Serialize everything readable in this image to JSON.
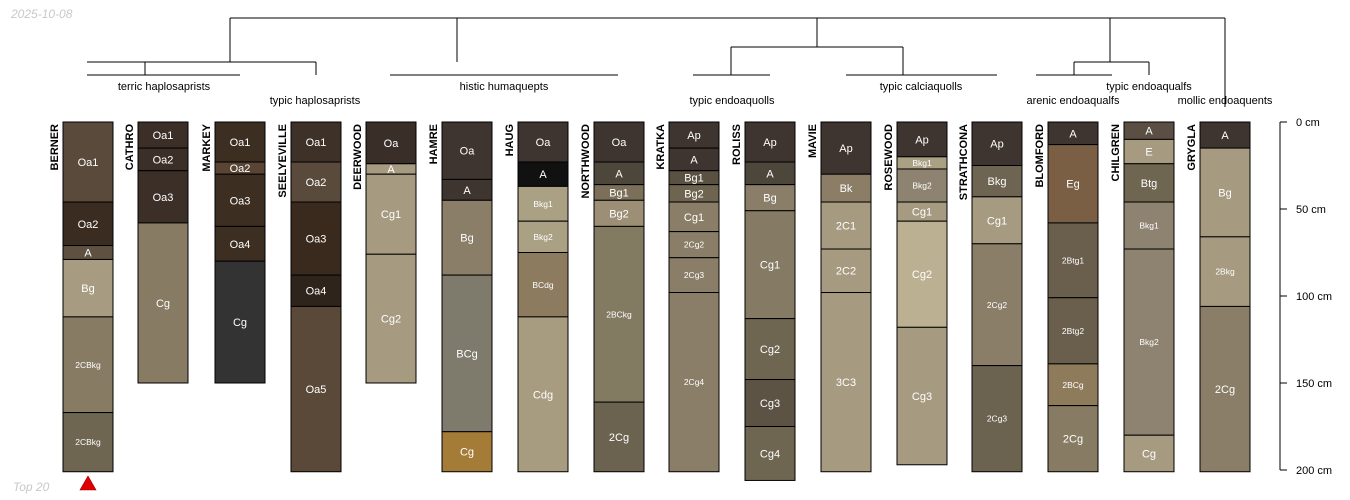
{
  "corner": {
    "top_left": "2025-10-08",
    "bottom_left": "Top 20"
  },
  "depth_axis": {
    "ticks": [
      "0 cm",
      "50 cm",
      "100 cm",
      "150 cm",
      "200 cm"
    ],
    "values": [
      0,
      50,
      100,
      150,
      200
    ],
    "max": 200
  },
  "groups": [
    "terric haplosaprists",
    "typic haplosaprists",
    "histic humaquepts",
    "typic endoaquolls",
    "typic calciaquolls",
    "typic endoaqualfs",
    "arenic endoaqualfs",
    "mollic endoaquents"
  ],
  "profiles": [
    {
      "name": "BERNER",
      "marker": true,
      "horizons": [
        {
          "name": "Oa1",
          "top": 0,
          "bottom": 46,
          "color": "#5a4a3b"
        },
        {
          "name": "Oa2",
          "top": 46,
          "bottom": 71,
          "color": "#3a2c20"
        },
        {
          "name": "A",
          "top": 71,
          "bottom": 79,
          "color": "#5e5140"
        },
        {
          "name": "Bg",
          "top": 79,
          "bottom": 112,
          "color": "#a79c82"
        },
        {
          "name": "2CBkg",
          "top": 112,
          "bottom": 167,
          "color": "#877b63"
        },
        {
          "name": "2CBkg",
          "top": 167,
          "bottom": 201,
          "color": "#6f6652"
        }
      ]
    },
    {
      "name": "CATHRO",
      "horizons": [
        {
          "name": "Oa1",
          "top": 0,
          "bottom": 15,
          "color": "#3c2f28"
        },
        {
          "name": "Oa2",
          "top": 15,
          "bottom": 28,
          "color": "#3c2f28"
        },
        {
          "name": "Oa3",
          "top": 28,
          "bottom": 58,
          "color": "#3c2f28"
        },
        {
          "name": "Cg",
          "top": 58,
          "bottom": 150,
          "color": "#877b63"
        }
      ]
    },
    {
      "name": "MARKEY",
      "horizons": [
        {
          "name": "Oa1",
          "top": 0,
          "bottom": 23,
          "color": "#3d2e22"
        },
        {
          "name": "Oa2",
          "top": 23,
          "bottom": 30,
          "color": "#5a4535"
        },
        {
          "name": "Oa3",
          "top": 30,
          "bottom": 60,
          "color": "#3d2e22"
        },
        {
          "name": "Oa4",
          "top": 60,
          "bottom": 80,
          "color": "#3d2e22"
        },
        {
          "name": "Cg",
          "top": 80,
          "bottom": 150,
          "color": "#333333"
        }
      ]
    },
    {
      "name": "SEELYEVILLE",
      "horizons": [
        {
          "name": "Oa1",
          "top": 0,
          "bottom": 23,
          "color": "#3e3128"
        },
        {
          "name": "Oa2",
          "top": 23,
          "bottom": 46,
          "color": "#5a4a3b"
        },
        {
          "name": "Oa3",
          "top": 46,
          "bottom": 88,
          "color": "#3a2a1e"
        },
        {
          "name": "Oa4",
          "top": 88,
          "bottom": 106,
          "color": "#2f241b"
        },
        {
          "name": "Oa5",
          "top": 106,
          "bottom": 201,
          "color": "#5a4838"
        }
      ]
    },
    {
      "name": "DEERWOOD",
      "horizons": [
        {
          "name": "Oa",
          "top": 0,
          "bottom": 24,
          "color": "#3a2e28"
        },
        {
          "name": "A",
          "top": 24,
          "bottom": 30,
          "color": "#a69a80"
        },
        {
          "name": "Cg1",
          "top": 30,
          "bottom": 76,
          "color": "#a69a80"
        },
        {
          "name": "Cg2",
          "top": 76,
          "bottom": 150,
          "color": "#a69a80"
        }
      ]
    },
    {
      "name": "HAMRE",
      "horizons": [
        {
          "name": "Oa",
          "top": 0,
          "bottom": 33,
          "color": "#3e3530"
        },
        {
          "name": "A",
          "top": 33,
          "bottom": 45,
          "color": "#3e3530"
        },
        {
          "name": "Bg",
          "top": 45,
          "bottom": 88,
          "color": "#8a7e68"
        },
        {
          "name": "BCg",
          "top": 88,
          "bottom": 178,
          "color": "#7e7a6c"
        },
        {
          "name": "Cg",
          "top": 178,
          "bottom": 201,
          "color": "#a57b38"
        }
      ]
    },
    {
      "name": "HAUG",
      "horizons": [
        {
          "name": "Oa",
          "top": 0,
          "bottom": 23,
          "color": "#3e3530"
        },
        {
          "name": "A",
          "top": 23,
          "bottom": 37,
          "color": "#111111"
        },
        {
          "name": "Bkg1",
          "top": 37,
          "bottom": 57,
          "color": "#aaa184"
        },
        {
          "name": "Bkg2",
          "top": 57,
          "bottom": 75,
          "color": "#aaa184"
        },
        {
          "name": "BCdg",
          "top": 75,
          "bottom": 112,
          "color": "#8c7b5e"
        },
        {
          "name": "Cdg",
          "top": 112,
          "bottom": 201,
          "color": "#a89c80"
        }
      ]
    },
    {
      "name": "NORTHWOOD",
      "horizons": [
        {
          "name": "Oa",
          "top": 0,
          "bottom": 23,
          "color": "#3e3530"
        },
        {
          "name": "A",
          "top": 23,
          "bottom": 36,
          "color": "#4d463b"
        },
        {
          "name": "Bg1",
          "top": 36,
          "bottom": 45,
          "color": "#7b6f5a"
        },
        {
          "name": "Bg2",
          "top": 45,
          "bottom": 60,
          "color": "#9c8f76"
        },
        {
          "name": "2BCkg",
          "top": 60,
          "bottom": 161,
          "color": "#837a62"
        },
        {
          "name": "2Cg",
          "top": 161,
          "bottom": 201,
          "color": "#6b6350"
        }
      ]
    },
    {
      "name": "KRATKA",
      "horizons": [
        {
          "name": "Ap",
          "top": 0,
          "bottom": 15,
          "color": "#3e3530"
        },
        {
          "name": "A",
          "top": 15,
          "bottom": 28,
          "color": "#3e3530"
        },
        {
          "name": "Bg1",
          "top": 28,
          "bottom": 36,
          "color": "#5b5142"
        },
        {
          "name": "Bg2",
          "top": 36,
          "bottom": 46,
          "color": "#6e6450"
        },
        {
          "name": "Cg1",
          "top": 46,
          "bottom": 63,
          "color": "#8a7e68"
        },
        {
          "name": "2Cg2",
          "top": 63,
          "bottom": 78,
          "color": "#8a7e68"
        },
        {
          "name": "2Cg3",
          "top": 78,
          "bottom": 98,
          "color": "#8a7e68"
        },
        {
          "name": "2Cg4",
          "top": 98,
          "bottom": 201,
          "color": "#8a7e68"
        }
      ]
    },
    {
      "name": "ROLISS",
      "horizons": [
        {
          "name": "Ap",
          "top": 0,
          "bottom": 23,
          "color": "#3e3530"
        },
        {
          "name": "A",
          "top": 23,
          "bottom": 36,
          "color": "#4d463b"
        },
        {
          "name": "Bg",
          "top": 36,
          "bottom": 51,
          "color": "#8a7e68"
        },
        {
          "name": "Cg1",
          "top": 51,
          "bottom": 113,
          "color": "#857b64"
        },
        {
          "name": "Cg2",
          "top": 113,
          "bottom": 148,
          "color": "#6f6652"
        },
        {
          "name": "Cg3",
          "top": 148,
          "bottom": 175,
          "color": "#5c5344"
        },
        {
          "name": "Cg4",
          "top": 175,
          "bottom": 206,
          "color": "#6f6652"
        }
      ]
    },
    {
      "name": "MAVIE",
      "horizons": [
        {
          "name": "Ap",
          "top": 0,
          "bottom": 30,
          "color": "#3e3530"
        },
        {
          "name": "Bk",
          "top": 30,
          "bottom": 46,
          "color": "#8c7e66"
        },
        {
          "name": "2C1",
          "top": 46,
          "bottom": 73,
          "color": "#a69a80"
        },
        {
          "name": "2C2",
          "top": 73,
          "bottom": 98,
          "color": "#a69a80"
        },
        {
          "name": "3C3",
          "top": 98,
          "bottom": 201,
          "color": "#a69a80"
        }
      ]
    },
    {
      "name": "ROSEWOOD",
      "horizons": [
        {
          "name": "Ap",
          "top": 0,
          "bottom": 20,
          "color": "#3e3530"
        },
        {
          "name": "Bkg1",
          "top": 20,
          "bottom": 27,
          "color": "#aaa184"
        },
        {
          "name": "Bkg2",
          "top": 27,
          "bottom": 46,
          "color": "#8e8370"
        },
        {
          "name": "Cg1",
          "top": 46,
          "bottom": 57,
          "color": "#a69a80"
        },
        {
          "name": "Cg2",
          "top": 57,
          "bottom": 118,
          "color": "#bbb092"
        },
        {
          "name": "Cg3",
          "top": 118,
          "bottom": 197,
          "color": "#a69a80"
        }
      ]
    },
    {
      "name": "STRATHCONA",
      "horizons": [
        {
          "name": "Ap",
          "top": 0,
          "bottom": 25,
          "color": "#3e3530"
        },
        {
          "name": "Bkg",
          "top": 25,
          "bottom": 43,
          "color": "#6d6452"
        },
        {
          "name": "Cg1",
          "top": 43,
          "bottom": 70,
          "color": "#a69a80"
        },
        {
          "name": "2Cg2",
          "top": 70,
          "bottom": 140,
          "color": "#8a7e68"
        },
        {
          "name": "2Cg3",
          "top": 140,
          "bottom": 201,
          "color": "#6b6350"
        }
      ]
    },
    {
      "name": "BLOMFORD",
      "horizons": [
        {
          "name": "A",
          "top": 0,
          "bottom": 13,
          "color": "#3e3530"
        },
        {
          "name": "Eg",
          "top": 13,
          "bottom": 58,
          "color": "#7b5f44"
        },
        {
          "name": "2Btg1",
          "top": 58,
          "bottom": 101,
          "color": "#6a5e4c"
        },
        {
          "name": "2Btg2",
          "top": 101,
          "bottom": 139,
          "color": "#6a5e4c"
        },
        {
          "name": "2BCg",
          "top": 139,
          "bottom": 163,
          "color": "#8e7b5b"
        },
        {
          "name": "2Cg",
          "top": 163,
          "bottom": 201,
          "color": "#877b63"
        }
      ]
    },
    {
      "name": "CHILGREN",
      "horizons": [
        {
          "name": "A",
          "top": 0,
          "bottom": 10,
          "color": "#5a4f42"
        },
        {
          "name": "E",
          "top": 10,
          "bottom": 24,
          "color": "#a69a80"
        },
        {
          "name": "Btg",
          "top": 24,
          "bottom": 46,
          "color": "#6f6652"
        },
        {
          "name": "Bkg1",
          "top": 46,
          "bottom": 73,
          "color": "#8e8370"
        },
        {
          "name": "Bkg2",
          "top": 73,
          "bottom": 180,
          "color": "#8e8370"
        },
        {
          "name": "Cg",
          "top": 180,
          "bottom": 201,
          "color": "#a69a80"
        }
      ]
    },
    {
      "name": "GRYGLA",
      "horizons": [
        {
          "name": "A",
          "top": 0,
          "bottom": 15,
          "color": "#3e3530"
        },
        {
          "name": "Bg",
          "top": 15,
          "bottom": 66,
          "color": "#a69a80"
        },
        {
          "name": "2Bkg",
          "top": 66,
          "bottom": 106,
          "color": "#a69a80"
        },
        {
          "name": "2Cg",
          "top": 106,
          "bottom": 201,
          "color": "#8a7e68"
        }
      ]
    }
  ]
}
